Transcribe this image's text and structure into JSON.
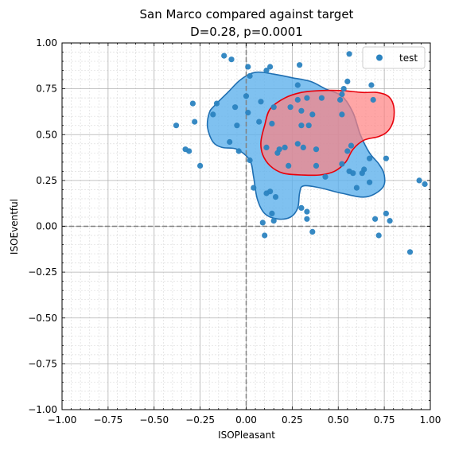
{
  "chart_data": {
    "type": "scatter",
    "title": "San Marco compared against target",
    "subtitle": "D=0.28, p=0.0001",
    "xlabel": "ISOPleasant",
    "ylabel": "ISOEventful",
    "xlim": [
      -1.0,
      1.0
    ],
    "ylim": [
      -1.0,
      1.0
    ],
    "xticks": [
      "−1.00",
      "−0.75",
      "−0.50",
      "−0.25",
      "0.00",
      "0.25",
      "0.50",
      "0.75",
      "1.00"
    ],
    "yticks": [
      "−1.00",
      "−0.75",
      "−0.50",
      "−0.25",
      "0.00",
      "0.25",
      "0.50",
      "0.75",
      "1.00"
    ],
    "grid": true,
    "minor_grid": true,
    "legend": {
      "position": "top-right",
      "entries": [
        "test"
      ]
    },
    "colors": {
      "points": "#2b83c0",
      "blue_fill": "#5fb2ec",
      "blue_edge": "#1f6fb2",
      "red_fill": "#ff8080",
      "red_edge": "#e8000b",
      "zero_lines": "#808080"
    },
    "series": [
      {
        "name": "test",
        "points": [
          [
            -0.12,
            0.93
          ],
          [
            -0.08,
            0.91
          ],
          [
            0.01,
            0.87
          ],
          [
            0.13,
            0.87
          ],
          [
            0.29,
            0.88
          ],
          [
            0.56,
            0.94
          ],
          [
            0.02,
            0.82
          ],
          [
            0.11,
            0.85
          ],
          [
            0.28,
            0.77
          ],
          [
            0.53,
            0.75
          ],
          [
            0.55,
            0.79
          ],
          [
            0.68,
            0.77
          ],
          [
            0.0,
            0.71
          ],
          [
            0.08,
            0.68
          ],
          [
            0.15,
            0.65
          ],
          [
            0.24,
            0.65
          ],
          [
            0.28,
            0.69
          ],
          [
            0.33,
            0.7
          ],
          [
            0.41,
            0.7
          ],
          [
            0.51,
            0.69
          ],
          [
            0.52,
            0.72
          ],
          [
            -0.29,
            0.67
          ],
          [
            -0.16,
            0.67
          ],
          [
            -0.06,
            0.65
          ],
          [
            -0.18,
            0.61
          ],
          [
            0.01,
            0.62
          ],
          [
            0.3,
            0.63
          ],
          [
            0.36,
            0.61
          ],
          [
            0.52,
            0.61
          ],
          [
            0.69,
            0.69
          ],
          [
            0.07,
            0.57
          ],
          [
            0.14,
            0.56
          ],
          [
            -0.38,
            0.55
          ],
          [
            -0.28,
            0.57
          ],
          [
            -0.05,
            0.55
          ],
          [
            0.3,
            0.55
          ],
          [
            0.34,
            0.55
          ],
          [
            -0.33,
            0.42
          ],
          [
            -0.31,
            0.41
          ],
          [
            -0.09,
            0.46
          ],
          [
            -0.04,
            0.41
          ],
          [
            0.21,
            0.43
          ],
          [
            0.17,
            0.4
          ],
          [
            0.18,
            0.42
          ],
          [
            0.11,
            0.43
          ],
          [
            0.28,
            0.45
          ],
          [
            0.31,
            0.43
          ],
          [
            0.38,
            0.42
          ],
          [
            0.55,
            0.41
          ],
          [
            0.57,
            0.44
          ],
          [
            0.67,
            0.37
          ],
          [
            0.76,
            0.37
          ],
          [
            -0.25,
            0.33
          ],
          [
            0.02,
            0.36
          ],
          [
            0.23,
            0.33
          ],
          [
            0.38,
            0.33
          ],
          [
            0.43,
            0.27
          ],
          [
            0.52,
            0.34
          ],
          [
            0.56,
            0.3
          ],
          [
            0.58,
            0.29
          ],
          [
            0.63,
            0.29
          ],
          [
            0.64,
            0.31
          ],
          [
            0.6,
            0.21
          ],
          [
            0.67,
            0.24
          ],
          [
            0.04,
            0.21
          ],
          [
            0.13,
            0.19
          ],
          [
            0.16,
            0.16
          ],
          [
            0.11,
            0.18
          ],
          [
            0.14,
            0.07
          ],
          [
            0.15,
            0.03
          ],
          [
            0.3,
            0.1
          ],
          [
            0.33,
            0.08
          ],
          [
            0.33,
            0.04
          ],
          [
            0.09,
            0.02
          ],
          [
            0.1,
            -0.05
          ],
          [
            0.36,
            -0.03
          ],
          [
            0.7,
            0.04
          ],
          [
            0.72,
            -0.05
          ],
          [
            0.76,
            0.07
          ],
          [
            0.78,
            0.03
          ],
          [
            0.89,
            -0.14
          ],
          [
            0.94,
            0.25
          ],
          [
            0.97,
            0.23
          ]
        ]
      }
    ],
    "regions": [
      {
        "color": "blue",
        "outline": [
          [
            -0.2,
            0.62
          ],
          [
            -0.17,
            0.66
          ],
          [
            -0.1,
            0.73
          ],
          [
            -0.03,
            0.8
          ],
          [
            0.05,
            0.84
          ],
          [
            0.15,
            0.83
          ],
          [
            0.25,
            0.81
          ],
          [
            0.35,
            0.79
          ],
          [
            0.43,
            0.75
          ],
          [
            0.52,
            0.71
          ],
          [
            0.58,
            0.62
          ],
          [
            0.62,
            0.5
          ],
          [
            0.67,
            0.4
          ],
          [
            0.72,
            0.34
          ],
          [
            0.75,
            0.28
          ],
          [
            0.74,
            0.21
          ],
          [
            0.65,
            0.16
          ],
          [
            0.52,
            0.18
          ],
          [
            0.4,
            0.21
          ],
          [
            0.31,
            0.22
          ],
          [
            0.29,
            0.18
          ],
          [
            0.28,
            0.1
          ],
          [
            0.24,
            0.05
          ],
          [
            0.17,
            0.04
          ],
          [
            0.1,
            0.07
          ],
          [
            0.06,
            0.15
          ],
          [
            0.04,
            0.27
          ],
          [
            0.02,
            0.36
          ],
          [
            -0.05,
            0.42
          ],
          [
            -0.13,
            0.43
          ],
          [
            -0.18,
            0.46
          ],
          [
            -0.21,
            0.54
          ]
        ]
      },
      {
        "color": "red",
        "outline": [
          [
            0.08,
            0.46
          ],
          [
            0.1,
            0.55
          ],
          [
            0.13,
            0.64
          ],
          [
            0.21,
            0.7
          ],
          [
            0.3,
            0.73
          ],
          [
            0.4,
            0.74
          ],
          [
            0.52,
            0.74
          ],
          [
            0.63,
            0.73
          ],
          [
            0.71,
            0.73
          ],
          [
            0.77,
            0.71
          ],
          [
            0.8,
            0.66
          ],
          [
            0.8,
            0.58
          ],
          [
            0.77,
            0.52
          ],
          [
            0.72,
            0.49
          ],
          [
            0.64,
            0.47
          ],
          [
            0.58,
            0.42
          ],
          [
            0.54,
            0.35
          ],
          [
            0.48,
            0.3
          ],
          [
            0.4,
            0.28
          ],
          [
            0.3,
            0.28
          ],
          [
            0.2,
            0.29
          ],
          [
            0.13,
            0.33
          ],
          [
            0.09,
            0.39
          ]
        ]
      }
    ]
  }
}
